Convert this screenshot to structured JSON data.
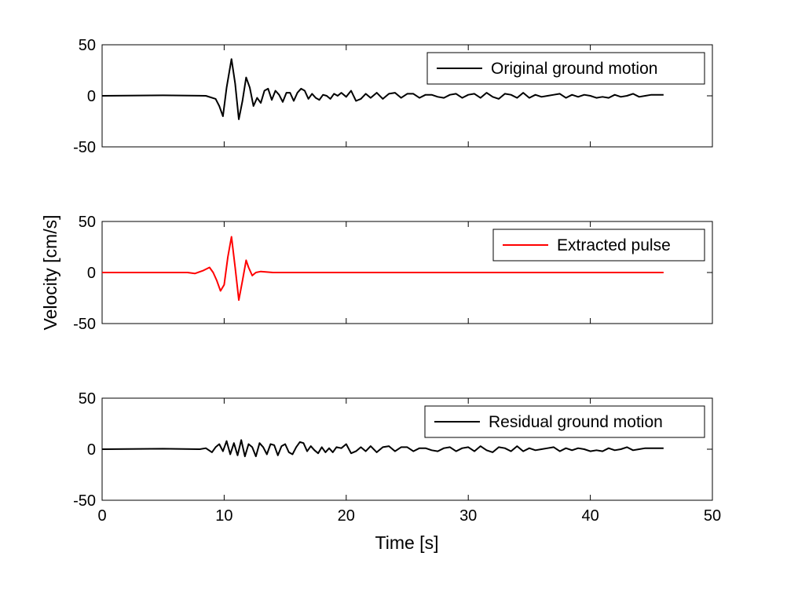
{
  "figure": {
    "ylabel": "Velocity [cm/s]",
    "xlabel": "Time [s]"
  },
  "chart_data": [
    {
      "type": "line",
      "xlim": [
        0,
        50
      ],
      "ylim": [
        -50,
        50
      ],
      "x_ticks": [
        0,
        10,
        20,
        30,
        40,
        50
      ],
      "x_tick_labels_shown": false,
      "y_ticks": [
        -50,
        0,
        50
      ],
      "grid": false,
      "legend_position": "top-right",
      "series": [
        {
          "name": "Original ground motion",
          "color": "#000000",
          "x": [
            0,
            5,
            8.5,
            9.3,
            9.6,
            9.9,
            10.2,
            10.6,
            10.9,
            11.2,
            11.5,
            11.8,
            12.1,
            12.4,
            12.7,
            13.0,
            13.3,
            13.6,
            13.9,
            14.2,
            14.5,
            14.8,
            15.1,
            15.4,
            15.7,
            16.0,
            16.3,
            16.6,
            16.9,
            17.2,
            17.5,
            17.8,
            18.1,
            18.4,
            18.7,
            19.0,
            19.3,
            19.6,
            20.0,
            20.4,
            20.8,
            21.2,
            21.6,
            22.0,
            22.5,
            23.0,
            23.5,
            24.0,
            24.5,
            25.0,
            25.5,
            26.0,
            26.5,
            27.0,
            27.5,
            28.0,
            28.5,
            29.0,
            29.5,
            30.0,
            30.5,
            31.0,
            31.5,
            32.0,
            32.5,
            33.0,
            33.5,
            34.0,
            34.5,
            35.0,
            35.5,
            36.0,
            36.5,
            37.0,
            37.5,
            38.0,
            38.5,
            39.0,
            39.5,
            40.0,
            40.5,
            41.0,
            41.5,
            42.0,
            42.5,
            43.0,
            43.5,
            44.0,
            44.5,
            45.0,
            45.5,
            46.0
          ],
          "y": [
            0,
            0.5,
            0,
            -3,
            -10,
            -20,
            8,
            36,
            12,
            -23,
            -5,
            18,
            8,
            -10,
            -2,
            -7,
            5,
            7,
            -4,
            5,
            1,
            -6,
            3,
            3,
            -5,
            3,
            7,
            5,
            -3,
            2,
            -2,
            -4,
            1,
            0,
            -3,
            2,
            0,
            3,
            -1,
            5,
            -5,
            -3,
            2,
            -2,
            3,
            -3,
            2,
            3,
            -2,
            2,
            2,
            -2,
            1,
            1,
            -1,
            -2,
            1,
            2,
            -2,
            1,
            2,
            -2,
            3,
            -1,
            -3,
            2,
            1,
            -2,
            3,
            -2,
            1,
            -1,
            0,
            1,
            2,
            -2,
            1,
            -1,
            1,
            0,
            -2,
            -1,
            -2,
            1,
            -1,
            0,
            2,
            -1,
            0,
            1,
            1,
            1
          ]
        }
      ]
    },
    {
      "type": "line",
      "xlim": [
        0,
        50
      ],
      "ylim": [
        -50,
        50
      ],
      "x_ticks": [
        0,
        10,
        20,
        30,
        40,
        50
      ],
      "x_tick_labels_shown": false,
      "y_ticks": [
        -50,
        0,
        50
      ],
      "grid": false,
      "legend_position": "top-right",
      "series": [
        {
          "name": "Extracted pulse",
          "color": "#ff0000",
          "x": [
            0,
            7.0,
            7.6,
            8.3,
            8.8,
            9.1,
            9.4,
            9.7,
            10.0,
            10.3,
            10.6,
            10.9,
            11.2,
            11.5,
            11.8,
            12.0,
            12.3,
            12.6,
            13.0,
            13.5,
            14.0,
            46.0
          ],
          "y": [
            0,
            0,
            -1,
            2,
            5,
            0,
            -8,
            -18,
            -12,
            15,
            35,
            5,
            -27,
            -8,
            12,
            5,
            -3,
            0,
            1,
            0.5,
            0,
            0
          ]
        }
      ]
    },
    {
      "type": "line",
      "xlim": [
        0,
        50
      ],
      "ylim": [
        -50,
        50
      ],
      "x_ticks": [
        0,
        10,
        20,
        30,
        40,
        50
      ],
      "x_tick_labels": [
        "0",
        "10",
        "20",
        "30",
        "40",
        "50"
      ],
      "y_ticks": [
        -50,
        0,
        50
      ],
      "grid": false,
      "legend_position": "top-right",
      "series": [
        {
          "name": "Residual ground motion",
          "color": "#000000",
          "x": [
            0,
            5,
            8.0,
            8.5,
            9.0,
            9.3,
            9.6,
            9.9,
            10.2,
            10.5,
            10.8,
            11.1,
            11.4,
            11.7,
            12.0,
            12.3,
            12.6,
            12.9,
            13.2,
            13.5,
            13.8,
            14.1,
            14.4,
            14.7,
            15.0,
            15.3,
            15.6,
            15.9,
            16.2,
            16.5,
            16.8,
            17.1,
            17.4,
            17.7,
            18.0,
            18.3,
            18.6,
            18.9,
            19.2,
            19.6,
            20.0,
            20.4,
            20.8,
            21.2,
            21.6,
            22.0,
            22.5,
            23.0,
            23.5,
            24.0,
            24.5,
            25.0,
            25.5,
            26.0,
            26.5,
            27.0,
            27.5,
            28.0,
            28.5,
            29.0,
            29.5,
            30.0,
            30.5,
            31.0,
            31.5,
            32.0,
            32.5,
            33.0,
            33.5,
            34.0,
            34.5,
            35.0,
            35.5,
            36.0,
            36.5,
            37.0,
            37.5,
            38.0,
            38.5,
            39.0,
            39.5,
            40.0,
            40.5,
            41.0,
            41.5,
            42.0,
            42.5,
            43.0,
            43.5,
            44.0,
            44.5,
            45.0,
            45.5,
            46.0
          ],
          "y": [
            0,
            0.5,
            0,
            1,
            -3,
            2,
            5,
            -2,
            8,
            -5,
            6,
            -6,
            9,
            -7,
            5,
            2,
            -7,
            6,
            2,
            -5,
            5,
            4,
            -6,
            3,
            5,
            -3,
            -5,
            2,
            7,
            6,
            -2,
            3,
            -1,
            -4,
            2,
            -3,
            1,
            -3,
            2,
            1,
            5,
            -4,
            -2,
            2,
            -2,
            3,
            -3,
            2,
            3,
            -2,
            2,
            2,
            -2,
            1,
            1,
            -1,
            -2,
            1,
            2,
            -2,
            1,
            2,
            -2,
            3,
            -1,
            -3,
            2,
            1,
            -2,
            3,
            -2,
            1,
            -1,
            0,
            1,
            2,
            -2,
            1,
            -1,
            1,
            0,
            -2,
            -1,
            -2,
            1,
            -1,
            0,
            2,
            -1,
            0,
            1,
            1,
            1,
            1
          ]
        }
      ]
    }
  ]
}
